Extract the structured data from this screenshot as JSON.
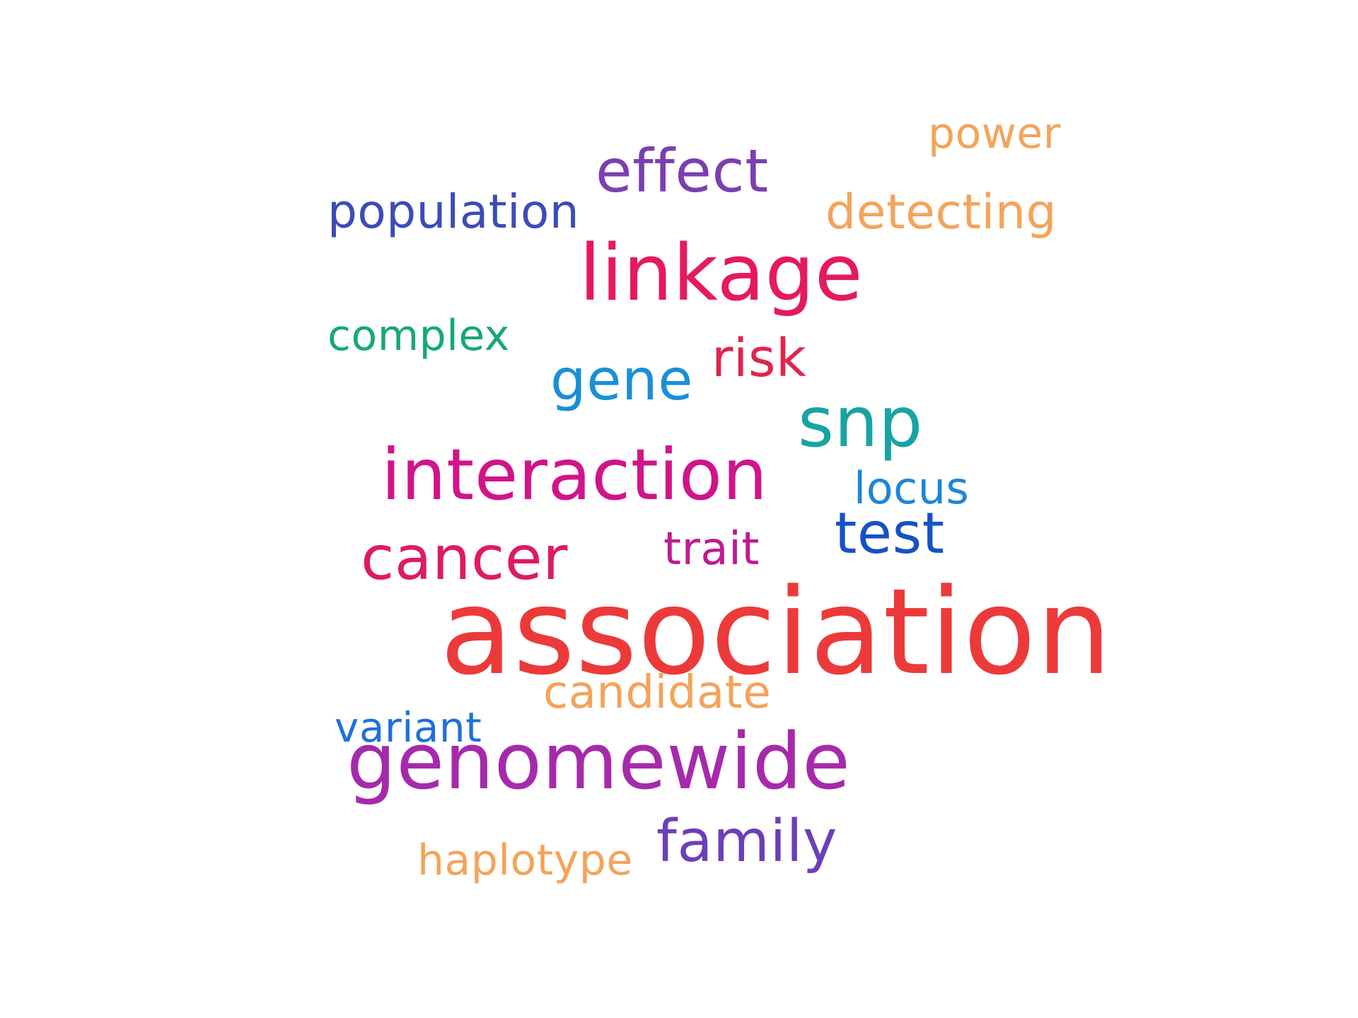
{
  "word_cloud": {
    "words": [
      {
        "key": "power",
        "text": "power",
        "color": "#f4a35a"
      },
      {
        "key": "effect",
        "text": "effect",
        "color": "#7b3fb0"
      },
      {
        "key": "population",
        "text": "population",
        "color": "#3d4bb8"
      },
      {
        "key": "detecting",
        "text": "detecting",
        "color": "#f4a35a"
      },
      {
        "key": "linkage",
        "text": "linkage",
        "color": "#e5195f"
      },
      {
        "key": "complex",
        "text": "complex",
        "color": "#17a77a"
      },
      {
        "key": "risk",
        "text": "risk",
        "color": "#e0244e"
      },
      {
        "key": "gene",
        "text": "gene",
        "color": "#1b8fd6"
      },
      {
        "key": "snp",
        "text": "snp",
        "color": "#1aa3a3"
      },
      {
        "key": "interaction",
        "text": "interaction",
        "color": "#d0148a"
      },
      {
        "key": "locus",
        "text": "locus",
        "color": "#1d86d8"
      },
      {
        "key": "test",
        "text": "test",
        "color": "#1552c4"
      },
      {
        "key": "cancer",
        "text": "cancer",
        "color": "#de1a64"
      },
      {
        "key": "trait",
        "text": "trait",
        "color": "#c01a90"
      },
      {
        "key": "association",
        "text": "association",
        "color": "#ec3a3a"
      },
      {
        "key": "candidate",
        "text": "candidate",
        "color": "#f4a35a"
      },
      {
        "key": "variant",
        "text": "variant",
        "color": "#1f70d9"
      },
      {
        "key": "genomewide",
        "text": "genomewide",
        "color": "#a52aab"
      },
      {
        "key": "family",
        "text": "family",
        "color": "#6b3fb8"
      },
      {
        "key": "haplotype",
        "text": "haplotype",
        "color": "#f4a35a"
      }
    ]
  }
}
